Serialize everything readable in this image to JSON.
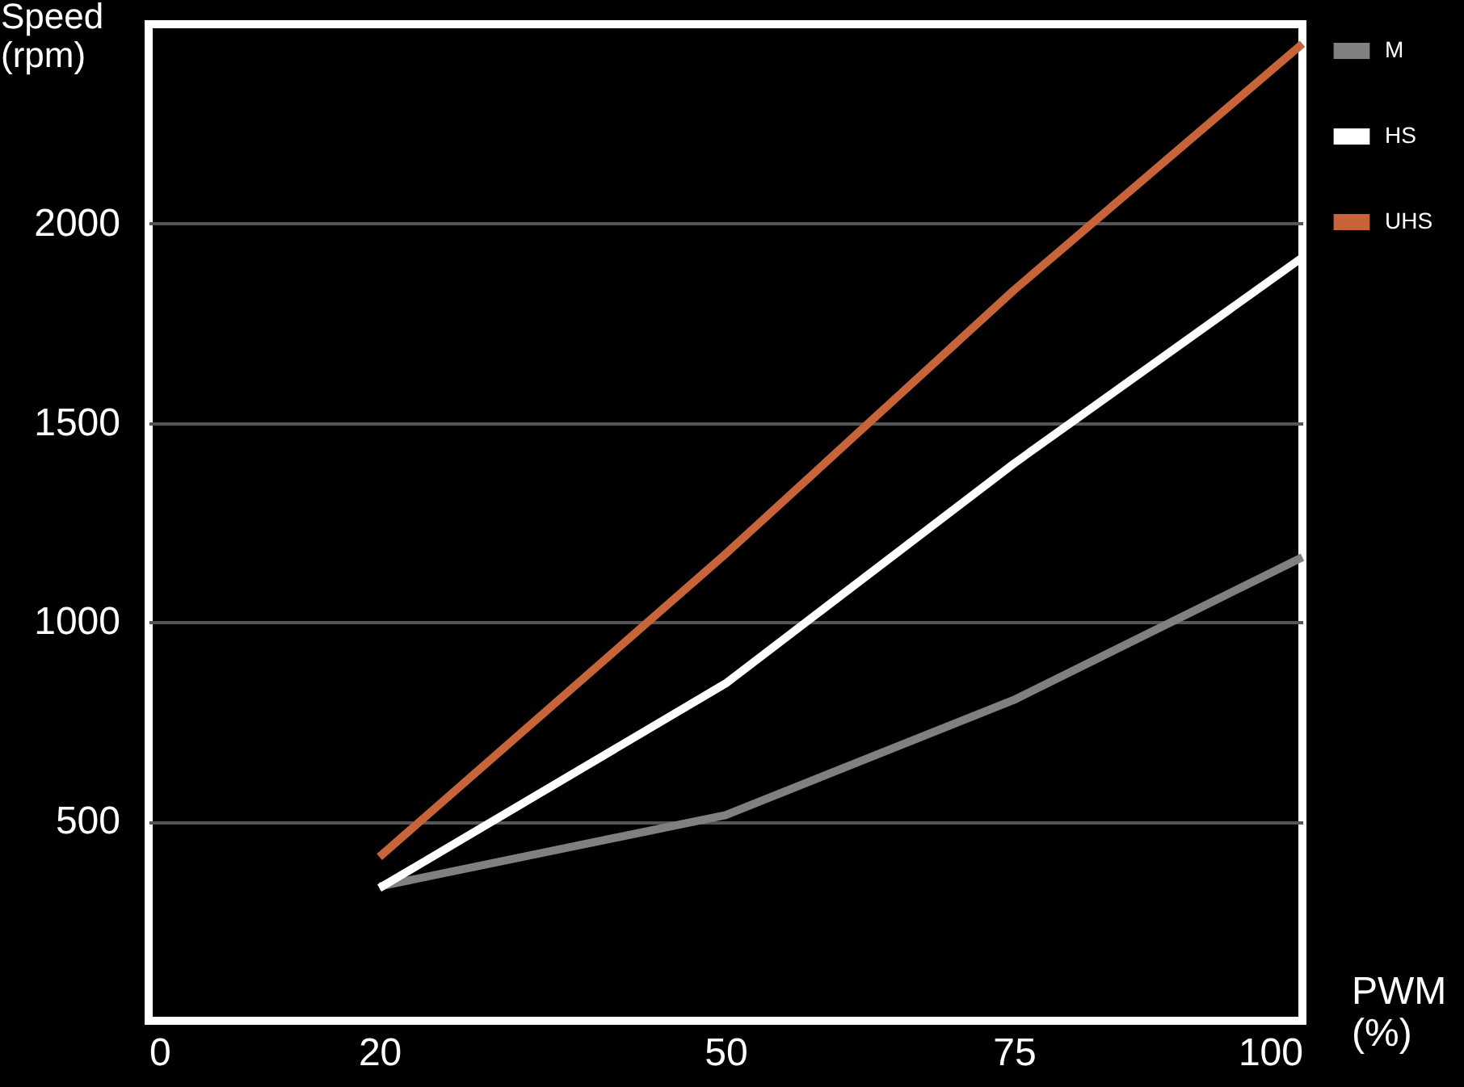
{
  "chart_data": {
    "type": "line",
    "xlabel": "PWM (%)",
    "ylabel": "Speed (rpm)",
    "x": [
      20,
      50,
      75,
      100
    ],
    "xlim": [
      0,
      100
    ],
    "xticks": [
      0,
      20,
      50,
      75,
      100
    ],
    "ylim": [
      0,
      2500
    ],
    "yticks": [
      500,
      1000,
      1500,
      2000
    ],
    "grid": "y",
    "legend": "right",
    "marker": "none",
    "line_style": "solid",
    "series": [
      {
        "name": "M",
        "color": "#808080",
        "values": [
          337,
          516,
          805,
          1163
        ]
      },
      {
        "name": "HS",
        "color": "#ffffff",
        "values": [
          333,
          846,
          1398,
          1915
        ]
      },
      {
        "name": "UHS",
        "color": "#c8643a",
        "values": [
          411,
          1171,
          1833,
          2451
        ]
      }
    ]
  }
}
